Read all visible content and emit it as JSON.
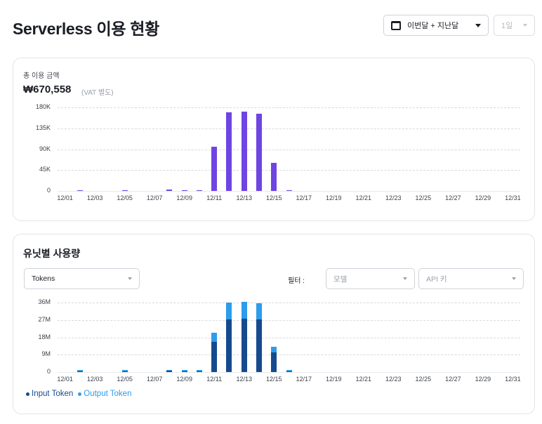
{
  "header": {
    "title": "Serverless 이용 현황",
    "period_select": {
      "icon": "calendar-icon",
      "value": "이번달 + 지난달"
    },
    "unit_select": {
      "value": "1일"
    }
  },
  "total_usage": {
    "label": "총 이용 금액",
    "amount": "₩670,558",
    "note": "(VAT 별도)"
  },
  "unit_usage": {
    "title": "유닛별 사용량",
    "metric_select": {
      "value": "Tokens"
    },
    "filter_label": "필터 :",
    "model_select": {
      "placeholder": "모델"
    },
    "apikey_select": {
      "placeholder": "API 키"
    },
    "legend": [
      {
        "label": "Input Token",
        "color": "#164a8f"
      },
      {
        "label": "Output Token",
        "color": "#2d9ceb"
      }
    ]
  },
  "colors": {
    "cost_bar": "#6e45e2",
    "input_token": "#164a8f",
    "output_token": "#2d9ceb"
  },
  "chart_data": [
    {
      "type": "bar",
      "title": "총 이용 금액",
      "xlabel": "",
      "ylabel": "",
      "ylim": [
        0,
        180000
      ],
      "yticks": [
        "0",
        "45K",
        "90K",
        "135K",
        "180K"
      ],
      "xtick_labels": [
        "12/01",
        "12/03",
        "12/05",
        "12/07",
        "12/09",
        "12/11",
        "12/13",
        "12/15",
        "12/17",
        "12/19",
        "12/21",
        "12/23",
        "12/25",
        "12/27",
        "12/29",
        "12/31"
      ],
      "grid": true,
      "categories": [
        "12/01",
        "12/02",
        "12/03",
        "12/04",
        "12/05",
        "12/06",
        "12/07",
        "12/08",
        "12/09",
        "12/10",
        "12/11",
        "12/12",
        "12/13",
        "12/14",
        "12/15",
        "12/16",
        "12/17",
        "12/18",
        "12/19",
        "12/20",
        "12/21",
        "12/22",
        "12/23",
        "12/24",
        "12/25",
        "12/26",
        "12/27",
        "12/28",
        "12/29",
        "12/30",
        "12/31"
      ],
      "values": [
        0,
        1000,
        0,
        0,
        500,
        0,
        0,
        3500,
        1500,
        500,
        95000,
        169000,
        171000,
        166000,
        60000,
        1000,
        0,
        0,
        0,
        0,
        0,
        0,
        0,
        0,
        0,
        0,
        0,
        0,
        0,
        0,
        0
      ]
    },
    {
      "type": "bar",
      "stacked": true,
      "title": "유닛별 사용량",
      "xlabel": "",
      "ylabel": "",
      "ylim": [
        0,
        36000000
      ],
      "yticks": [
        "0",
        "9M",
        "18M",
        "27M",
        "36M"
      ],
      "xtick_labels": [
        "12/01",
        "12/03",
        "12/05",
        "12/07",
        "12/09",
        "12/11",
        "12/13",
        "12/15",
        "12/17",
        "12/19",
        "12/21",
        "12/23",
        "12/25",
        "12/27",
        "12/29",
        "12/31"
      ],
      "grid": true,
      "legend_position": "bottom-left",
      "categories": [
        "12/01",
        "12/02",
        "12/03",
        "12/04",
        "12/05",
        "12/06",
        "12/07",
        "12/08",
        "12/09",
        "12/10",
        "12/11",
        "12/12",
        "12/13",
        "12/14",
        "12/15",
        "12/16",
        "12/17",
        "12/18",
        "12/19",
        "12/20",
        "12/21",
        "12/22",
        "12/23",
        "12/24",
        "12/25",
        "12/26",
        "12/27",
        "12/28",
        "12/29",
        "12/30",
        "12/31"
      ],
      "series": [
        {
          "name": "Input Token",
          "values": [
            0,
            150000,
            0,
            0,
            100000,
            0,
            0,
            600000,
            250000,
            80000,
            15600000,
            27300000,
            27600000,
            27300000,
            10200000,
            150000,
            0,
            0,
            0,
            0,
            0,
            0,
            0,
            0,
            0,
            0,
            0,
            0,
            0,
            0,
            0
          ]
        },
        {
          "name": "Output Token",
          "values": [
            0,
            100000,
            0,
            0,
            60000,
            0,
            0,
            250000,
            120000,
            40000,
            4800000,
            8700000,
            8800000,
            8300000,
            2900000,
            60000,
            0,
            0,
            0,
            0,
            0,
            0,
            0,
            0,
            0,
            0,
            0,
            0,
            0,
            0,
            0
          ]
        }
      ]
    }
  ]
}
